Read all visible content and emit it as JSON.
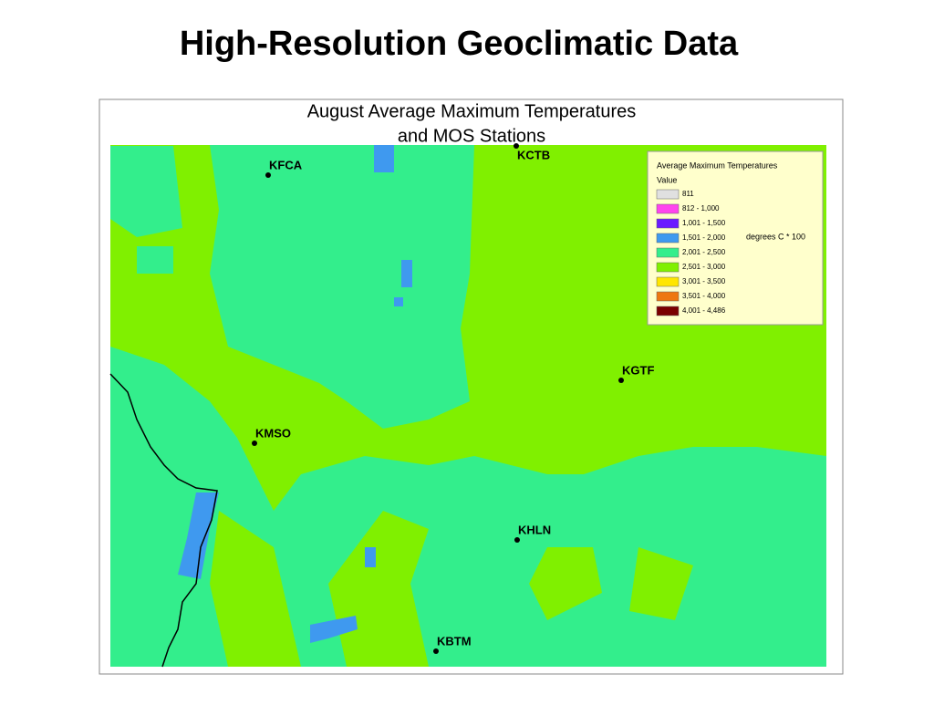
{
  "header": {
    "title": "High-Resolution Geoclimatic Data"
  },
  "map": {
    "title": [
      "August Average Maximum Temperatures",
      "and MOS Stations"
    ],
    "stations": [
      {
        "label": "KFCA"
      },
      {
        "label": "KCTB"
      },
      {
        "label": "KGTF"
      },
      {
        "label": "KMSO"
      },
      {
        "label": "KHLN"
      },
      {
        "label": "KBTM"
      }
    ],
    "legend": {
      "title": "Average Maximum Temperatures",
      "subtitle": "Value",
      "unit": "degrees C * 100",
      "items": [
        {
          "label": "811",
          "color": "#e0e0e0"
        },
        {
          "label": "812 - 1,000",
          "color": "#ff44ee"
        },
        {
          "label": "1,001 - 1,500",
          "color": "#6a1aff"
        },
        {
          "label": "1,501 - 2,000",
          "color": "#3f99ef"
        },
        {
          "label": "2,001 - 2,500",
          "color": "#33ee8c"
        },
        {
          "label": "2,501 - 3,000",
          "color": "#80f000"
        },
        {
          "label": "3,001 - 3,500",
          "color": "#ffe600"
        },
        {
          "label": "3,501 - 4,000",
          "color": "#ee7711"
        },
        {
          "label": "4,001 - 4,486",
          "color": "#7a0000"
        }
      ]
    }
  }
}
